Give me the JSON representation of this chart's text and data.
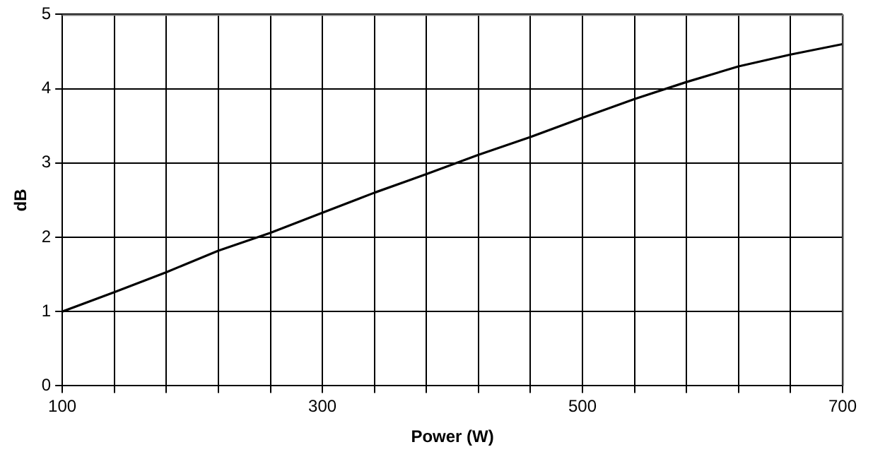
{
  "chart_data": {
    "type": "line",
    "xlabel": "Power (W)",
    "ylabel": "dB",
    "x": [
      100,
      140,
      180,
      220,
      260,
      300,
      340,
      380,
      420,
      460,
      500,
      540,
      580,
      620,
      660,
      700
    ],
    "series": [
      {
        "color": "#000000",
        "values": [
          1.0,
          1.26,
          1.53,
          1.82,
          2.06,
          2.33,
          2.6,
          2.85,
          3.11,
          3.35,
          3.61,
          3.86,
          4.09,
          4.3,
          4.46,
          4.6
        ]
      }
    ],
    "xlim": [
      100,
      700
    ],
    "xticks": [
      100,
      {
        "value": 140,
        "label": null
      },
      {
        "value": 180,
        "label": null
      },
      {
        "value": 220,
        "label": null
      },
      {
        "value": 260,
        "label": null
      },
      300,
      {
        "value": 340,
        "label": null
      },
      {
        "value": 380,
        "label": null
      },
      {
        "value": 420,
        "label": null
      },
      {
        "value": 460,
        "label": null
      },
      500,
      {
        "value": 540,
        "label": null
      },
      {
        "value": 580,
        "label": null
      },
      {
        "value": 620,
        "label": null
      },
      {
        "value": 660,
        "label": null
      },
      700
    ],
    "ylim": [
      0,
      5
    ],
    "yticks": [
      0,
      1,
      2,
      3,
      4,
      5
    ],
    "grid": true,
    "legend": false,
    "marker": "none",
    "line_style": "solid"
  }
}
